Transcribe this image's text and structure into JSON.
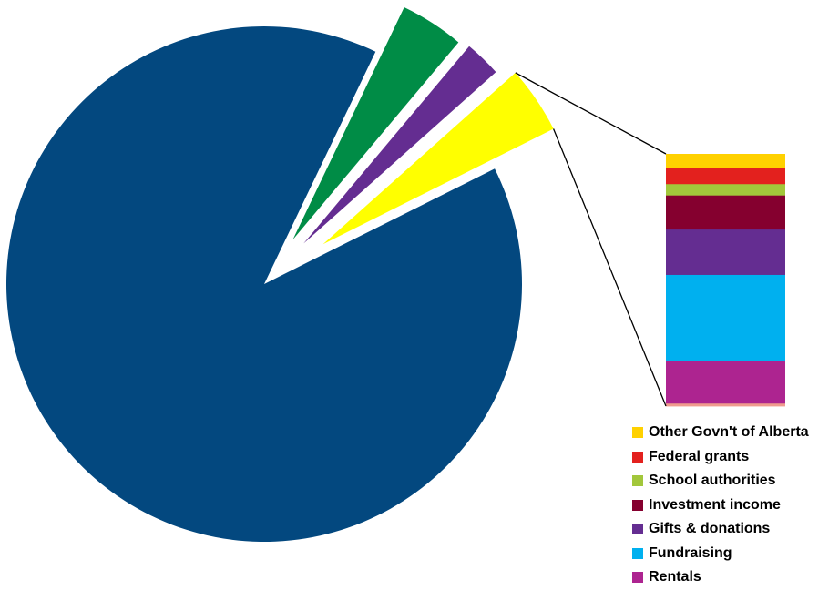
{
  "chart_data": {
    "type": "pie-of-bar",
    "main_pie": {
      "slices": [
        {
          "value": 89.5,
          "color": "#03487F"
        },
        {
          "value": 4.0,
          "color": "#008C46"
        },
        {
          "value": 2.3,
          "color": "#642D91"
        },
        {
          "value": 4.2,
          "color": "#FFFF00",
          "exploded_to_bar": true
        }
      ]
    },
    "bar_breakdown": {
      "series": [
        {
          "name": "Other Govn't of Alberta",
          "value": 5.5,
          "color": "#FFD100"
        },
        {
          "name": "Federal grants",
          "value": 6.5,
          "color": "#E3211E"
        },
        {
          "name": "School authorities",
          "value": 4.5,
          "color": "#A2C73B"
        },
        {
          "name": "Investment income",
          "value": 13.5,
          "color": "#85002F"
        },
        {
          "name": "Gifts & donations",
          "value": 18,
          "color": "#642D91"
        },
        {
          "name": "Fundraising",
          "value": 34,
          "color": "#00B0EF"
        },
        {
          "name": "Rentals",
          "value": 17,
          "color": "#AD2490"
        },
        {
          "name": "",
          "value": 1,
          "color": "#F09B8E"
        }
      ]
    },
    "legend": {
      "placement": "bottom-right"
    }
  }
}
